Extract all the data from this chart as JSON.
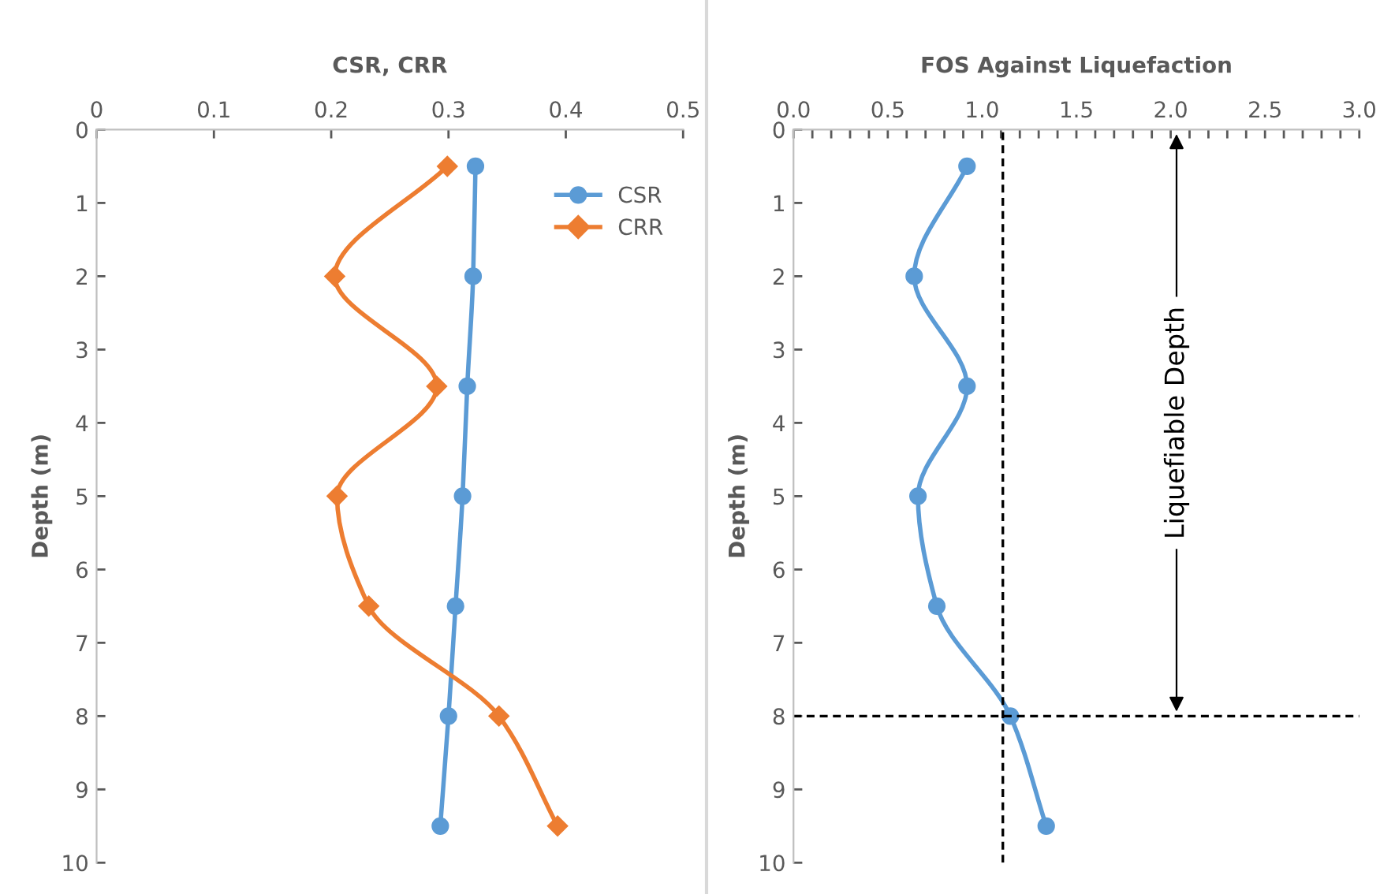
{
  "chart_data": [
    {
      "type": "line",
      "title": "CSR, CRR",
      "ylabel": "Depth (m)",
      "legend": "top right",
      "grid": false,
      "xlim": [
        0,
        0.5
      ],
      "xticks": [
        0,
        0.1,
        0.2,
        0.3,
        0.4,
        0.5
      ],
      "ylim": [
        10,
        0
      ],
      "yticks": [
        0,
        1,
        2,
        3,
        4,
        5,
        6,
        7,
        8,
        9,
        10
      ],
      "series": [
        {
          "name": "CSR",
          "color": "#5b9bd5",
          "marker": "circle",
          "x": [
            0.323,
            0.321,
            0.316,
            0.312,
            0.306,
            0.3,
            0.293
          ],
          "values": [
            0.5,
            2,
            3.5,
            5,
            6.5,
            8,
            9.5
          ]
        },
        {
          "name": "CRR",
          "color": "#ed7d31",
          "marker": "diamond",
          "x": [
            0.299,
            0.203,
            0.29,
            0.205,
            0.232,
            0.343,
            0.393
          ],
          "values": [
            0.5,
            2,
            3.5,
            5,
            6.5,
            8,
            9.5
          ]
        }
      ]
    },
    {
      "type": "line",
      "title": "FOS Against Liquefaction",
      "ylabel": "Depth (m)",
      "grid": false,
      "marker": "circle",
      "xlim": [
        0,
        3.0
      ],
      "xticks": [
        {
          "value": 0,
          "label": "0.0"
        },
        {
          "value": 0.1,
          "label": null
        },
        {
          "value": 0.2,
          "label": null
        },
        {
          "value": 0.3,
          "label": null
        },
        {
          "value": 0.4,
          "label": null
        },
        {
          "value": 0.5,
          "label": "0.5"
        },
        {
          "value": 0.6,
          "label": null
        },
        {
          "value": 0.7,
          "label": null
        },
        {
          "value": 0.8,
          "label": null
        },
        {
          "value": 0.9,
          "label": null
        },
        {
          "value": 1.0,
          "label": "1.0"
        },
        {
          "value": 1.1,
          "label": null
        },
        {
          "value": 1.2,
          "label": null
        },
        {
          "value": 1.3,
          "label": null
        },
        {
          "value": 1.4,
          "label": null
        },
        {
          "value": 1.5,
          "label": "1.5"
        },
        {
          "value": 1.6,
          "label": null
        },
        {
          "value": 1.7,
          "label": null
        },
        {
          "value": 1.8,
          "label": null
        },
        {
          "value": 1.9,
          "label": null
        },
        {
          "value": 2.0,
          "label": "2.0"
        },
        {
          "value": 2.1,
          "label": null
        },
        {
          "value": 2.2,
          "label": null
        },
        {
          "value": 2.3,
          "label": null
        },
        {
          "value": 2.4,
          "label": null
        },
        {
          "value": 2.5,
          "label": "2.5"
        },
        {
          "value": 2.6,
          "label": null
        },
        {
          "value": 2.7,
          "label": null
        },
        {
          "value": 2.8,
          "label": null
        },
        {
          "value": 2.9,
          "label": null
        },
        {
          "value": 3.0,
          "label": "3.0"
        }
      ],
      "ylim": [
        10,
        0
      ],
      "yticks": [
        0,
        1,
        2,
        3,
        4,
        5,
        6,
        7,
        8,
        9,
        10
      ],
      "series": [
        {
          "color": "#5b9bd5",
          "x": [
            0.92,
            0.64,
            0.92,
            0.66,
            0.76,
            1.15,
            1.34
          ],
          "values": [
            0.5,
            2,
            3.5,
            5,
            6.5,
            8,
            9.5
          ]
        }
      ],
      "ref_lines": [
        {
          "axis": "x",
          "value": 1.11,
          "color": "#000000",
          "line_style": "dashed"
        },
        {
          "axis": "y",
          "value": 8,
          "color": "#000000",
          "line_style": "dashed"
        }
      ],
      "annotations": [
        "Liquefiable Depth"
      ]
    }
  ]
}
